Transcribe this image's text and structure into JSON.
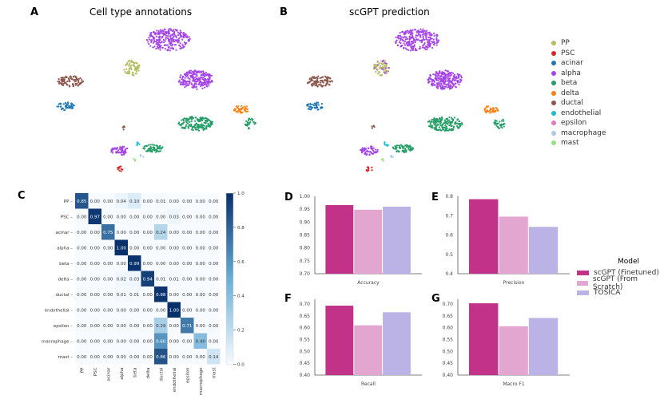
{
  "panels": {
    "A": {
      "letter": "A",
      "title": "Cell type annotations"
    },
    "B": {
      "letter": "B",
      "title": "scGPT prediction"
    },
    "C": {
      "letter": "C"
    },
    "D": {
      "letter": "D"
    },
    "E": {
      "letter": "E"
    },
    "F": {
      "letter": "F"
    },
    "G": {
      "letter": "G"
    }
  },
  "umap_legend": [
    {
      "label": "PP",
      "color": "#b5bd61"
    },
    {
      "label": "PSC",
      "color": "#d62728"
    },
    {
      "label": "acinar",
      "color": "#1f77b4"
    },
    {
      "label": "alpha",
      "color": "#a445e8"
    },
    {
      "label": "beta",
      "color": "#279e68"
    },
    {
      "label": "delta",
      "color": "#ff7f0e"
    },
    {
      "label": "ductal",
      "color": "#8c564b"
    },
    {
      "label": "endothelial",
      "color": "#17becf"
    },
    {
      "label": "epsilon",
      "color": "#e377c2"
    },
    {
      "label": "macrophage",
      "color": "#aec7e8"
    },
    {
      "label": "mast",
      "color": "#98df8a"
    }
  ],
  "chart_data": [
    {
      "type": "heatmap",
      "title": "Confusion matrix",
      "labels": [
        "PP",
        "PSC",
        "acinar",
        "alpha",
        "beta",
        "delta",
        "ductal",
        "endothelial",
        "epsilon",
        "macrophage",
        "mast"
      ],
      "values": [
        [
          0.85,
          0.0,
          0.0,
          0.04,
          0.1,
          0.0,
          0.01,
          0.0,
          0.0,
          0.0,
          0.0
        ],
        [
          0.0,
          0.97,
          0.0,
          0.0,
          0.0,
          0.0,
          0.0,
          0.03,
          0.0,
          0.0,
          0.0
        ],
        [
          0.0,
          0.0,
          0.75,
          0.0,
          0.0,
          0.0,
          0.24,
          0.0,
          0.0,
          0.0,
          0.0
        ],
        [
          0.0,
          0.0,
          0.0,
          1.0,
          0.0,
          0.0,
          0.0,
          0.0,
          0.0,
          0.0,
          0.0
        ],
        [
          0.0,
          0.0,
          0.0,
          0.0,
          0.99,
          0.0,
          0.0,
          0.0,
          0.0,
          0.0,
          0.0
        ],
        [
          0.0,
          0.0,
          0.0,
          0.02,
          0.03,
          0.94,
          0.01,
          0.01,
          0.0,
          0.0,
          0.0
        ],
        [
          0.0,
          0.0,
          0.0,
          0.01,
          0.01,
          0.0,
          0.98,
          0.0,
          0.0,
          0.0,
          0.0
        ],
        [
          0.0,
          0.0,
          0.0,
          0.0,
          0.0,
          0.0,
          0.0,
          1.0,
          0.0,
          0.0,
          0.0
        ],
        [
          0.0,
          0.0,
          0.0,
          0.0,
          0.0,
          0.0,
          0.29,
          0.0,
          0.71,
          0.0,
          0.0
        ],
        [
          0.0,
          0.0,
          0.0,
          0.0,
          0.0,
          0.0,
          0.6,
          0.0,
          0.0,
          0.4,
          0.0
        ],
        [
          0.0,
          0.0,
          0.0,
          0.0,
          0.0,
          0.0,
          0.86,
          0.0,
          0.0,
          0.0,
          0.14
        ]
      ],
      "colorbar_ticks": [
        "0.0",
        "0.2",
        "0.4",
        "0.6",
        "0.8",
        "1.0"
      ]
    },
    {
      "type": "bar",
      "xlabel": "Accuracy",
      "ylim": [
        0.7,
        1.0
      ],
      "ticks": [
        "0.70",
        "0.75",
        "0.80",
        "0.85",
        "0.90",
        "0.95",
        "1.00"
      ],
      "values": [
        0.966,
        0.948,
        0.96
      ]
    },
    {
      "type": "bar",
      "xlabel": "Precision",
      "ylim": [
        0.4,
        0.8
      ],
      "ticks": [
        "0.4",
        "0.5",
        "0.6",
        "0.7",
        "0.8"
      ],
      "values": [
        0.785,
        0.695,
        0.642
      ]
    },
    {
      "type": "bar",
      "xlabel": "Recall",
      "ylim": [
        0.4,
        0.72
      ],
      "ticks": [
        "0.40",
        "0.45",
        "0.50",
        "0.55",
        "0.60",
        "0.65",
        "0.70"
      ],
      "values": [
        0.693,
        0.61,
        0.665
      ]
    },
    {
      "type": "bar",
      "xlabel": "Macro F1",
      "ylim": [
        0.4,
        0.72
      ],
      "ticks": [
        "0.40",
        "0.45",
        "0.50",
        "0.55",
        "0.60",
        "0.65",
        "0.70"
      ],
      "values": [
        0.703,
        0.606,
        0.641
      ]
    }
  ],
  "bar_legend": {
    "title": "Model",
    "items": [
      {
        "label": "scGPT (Finetuned)",
        "color": "#c23288"
      },
      {
        "label": "scGPT (From Scratch)",
        "color": "#e3a6d1"
      },
      {
        "label": "TOSICA",
        "color": "#bbb3e5"
      }
    ]
  }
}
